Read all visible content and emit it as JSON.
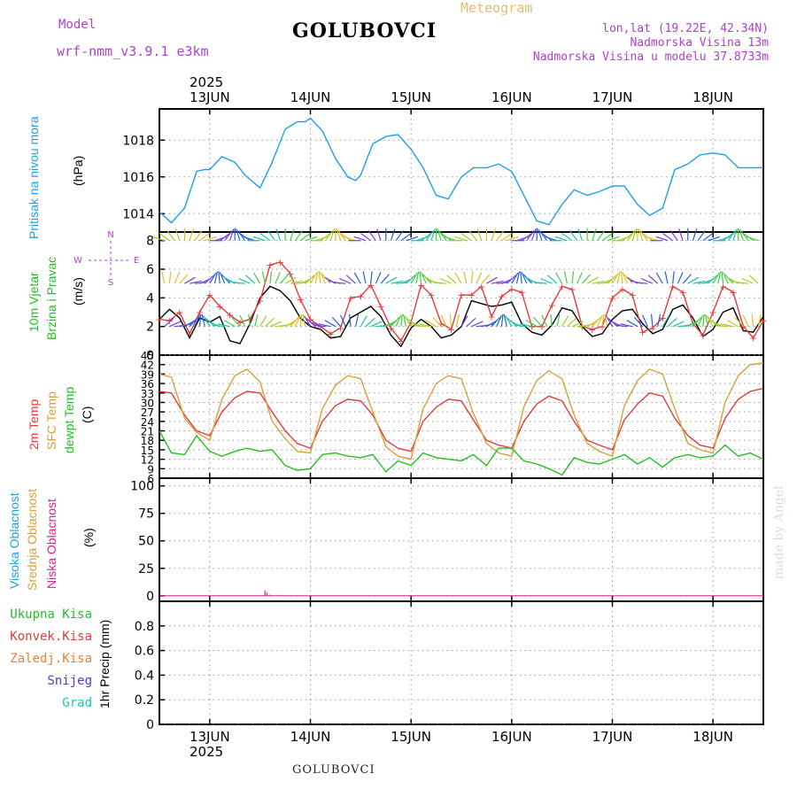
{
  "header": {
    "model_label": "Model",
    "model_name": "wrf-nmm_v3.9.1 e3km",
    "station": "GOLUBOVCI",
    "meteogram": "Meteogram",
    "lonlat": "lon,lat (19.22E, 42.34N)",
    "elevation": "Nadmorska Visina 13m",
    "model_elevation": "Nadmorska Visina u modelu 37.8733m",
    "footer_station": "GOLUBOVCI",
    "watermark": "made by Angel"
  },
  "colors": {
    "pressure": "#1ea0e6",
    "wind_speed": "#000000",
    "gust": "#e23c3c",
    "t2m": "#e23c3c",
    "sfc": "#d9a03c",
    "dewpt": "#22c022",
    "high_cloud": "#1ea0e6",
    "mid_cloud": "#d9a03c",
    "low_cloud": "#e0208a",
    "ukupna": "#22c022",
    "konvek": "#e23c3c",
    "zaledj": "#f08030",
    "snijeg": "#4040e0",
    "grad": "#20c0b0"
  },
  "chart_data": {
    "type": "line",
    "x_axis": {
      "year": "2025",
      "tick_labels": [
        "13JUN",
        "14JUN",
        "15JUN",
        "16JUN",
        "17JUN",
        "18JUN"
      ],
      "start_day": 12.5,
      "end_day": 18.5,
      "major_ticks": [
        13,
        14,
        15,
        16,
        17,
        18
      ]
    },
    "panels": [
      {
        "id": "pressure",
        "ylabel": "(hPa)",
        "side_labels": [
          "Pritisak na nivou mora"
        ],
        "ylim": [
          1013,
          1019.7
        ],
        "yticks": [
          1014,
          1016,
          1018
        ],
        "series": [
          {
            "name": "Pritisak na nivou mora",
            "color": "pressure",
            "x": [
              12.5,
              12.62,
              12.75,
              12.87,
              12.95,
              13.0,
              13.12,
              13.25,
              13.35,
              13.5,
              13.62,
              13.75,
              13.87,
              13.95,
              14.0,
              14.12,
              14.25,
              14.37,
              14.45,
              14.5,
              14.62,
              14.75,
              14.87,
              15.0,
              15.12,
              15.25,
              15.37,
              15.5,
              15.62,
              15.75,
              15.87,
              16.0,
              16.12,
              16.25,
              16.37,
              16.5,
              16.62,
              16.75,
              16.87,
              17.0,
              17.12,
              17.25,
              17.37,
              17.5,
              17.62,
              17.75,
              17.87,
              18.0,
              18.12,
              18.25,
              18.37,
              18.5
            ],
            "y": [
              1014.1,
              1013.5,
              1014.3,
              1016.3,
              1016.4,
              1016.4,
              1017.1,
              1016.8,
              1016.1,
              1015.4,
              1016.8,
              1018.6,
              1019.0,
              1019.0,
              1019.2,
              1018.5,
              1017.0,
              1016.0,
              1015.8,
              1016.1,
              1017.8,
              1018.2,
              1018.3,
              1017.5,
              1016.5,
              1015.0,
              1014.8,
              1016.0,
              1016.5,
              1016.5,
              1016.7,
              1016.3,
              1015.0,
              1013.6,
              1013.4,
              1014.5,
              1015.3,
              1015.0,
              1015.2,
              1015.5,
              1015.5,
              1014.5,
              1013.9,
              1014.3,
              1016.4,
              1016.7,
              1017.2,
              1017.3,
              1017.2,
              1016.5,
              1016.5,
              1016.5
            ]
          }
        ]
      },
      {
        "id": "wind",
        "ylabel": "(m/s)",
        "side_labels": [
          "10m Vjetar",
          "Brzina i Pravac"
        ],
        "compass": [
          "N",
          "E",
          "S",
          "W"
        ],
        "ylim": [
          0,
          8.6
        ],
        "yticks": [
          0,
          2,
          4,
          6,
          8
        ],
        "series": [
          {
            "name": "Brzina vjetra",
            "color": "wind_speed",
            "x": [
              12.5,
              12.6,
              12.7,
              12.8,
              12.9,
              13.0,
              13.1,
              13.2,
              13.3,
              13.4,
              13.5,
              13.6,
              13.7,
              13.8,
              13.9,
              14.0,
              14.1,
              14.2,
              14.3,
              14.4,
              14.5,
              14.6,
              14.7,
              14.8,
              14.9,
              15.0,
              15.1,
              15.2,
              15.3,
              15.4,
              15.5,
              15.6,
              15.7,
              15.8,
              15.9,
              16.0,
              16.1,
              16.2,
              16.3,
              16.4,
              16.5,
              16.6,
              16.7,
              16.8,
              16.9,
              17.0,
              17.1,
              17.2,
              17.3,
              17.4,
              17.5,
              17.6,
              17.7,
              17.8,
              17.9,
              18.0,
              18.1,
              18.2,
              18.3,
              18.4,
              18.5
            ],
            "y": [
              2.5,
              3.2,
              2.6,
              1.2,
              2.6,
              2.3,
              2.7,
              1.0,
              0.8,
              2.2,
              4.0,
              4.8,
              4.5,
              3.8,
              2.6,
              2.0,
              1.8,
              1.2,
              1.3,
              2.6,
              3.0,
              3.4,
              2.7,
              1.4,
              0.6,
              1.9,
              2.5,
              2.0,
              1.2,
              1.4,
              2.0,
              3.8,
              3.6,
              3.4,
              3.5,
              3.7,
              2.2,
              1.6,
              1.4,
              2.1,
              3.3,
              3.1,
              2.0,
              1.3,
              1.5,
              2.5,
              3.1,
              3.2,
              2.2,
              1.5,
              1.8,
              3.2,
              3.5,
              2.6,
              1.3,
              1.8,
              3.0,
              3.3,
              1.7,
              1.6,
              2.7
            ]
          },
          {
            "name": "Udari vjetra",
            "color": "gust",
            "x": [
              12.5,
              12.6,
              12.7,
              12.8,
              12.9,
              13.0,
              13.1,
              13.2,
              13.3,
              13.4,
              13.5,
              13.6,
              13.7,
              13.8,
              13.9,
              14.0,
              14.1,
              14.2,
              14.3,
              14.4,
              14.5,
              14.6,
              14.7,
              14.8,
              14.9,
              15.0,
              15.1,
              15.2,
              15.3,
              15.4,
              15.5,
              15.6,
              15.7,
              15.8,
              15.9,
              16.0,
              16.1,
              16.2,
              16.3,
              16.4,
              16.5,
              16.6,
              16.7,
              16.8,
              16.9,
              17.0,
              17.1,
              17.2,
              17.3,
              17.4,
              17.5,
              17.6,
              17.7,
              17.8,
              17.9,
              18.0,
              18.1,
              18.2,
              18.3,
              18.4,
              18.5
            ],
            "y": [
              2.5,
              2.4,
              3.0,
              1.5,
              3.0,
              4.2,
              3.4,
              2.8,
              2.3,
              2.5,
              3.8,
              6.3,
              6.5,
              5.7,
              3.9,
              2.5,
              2.0,
              1.5,
              1.9,
              4.0,
              4.1,
              4.9,
              3.4,
              1.9,
              1.0,
              2.3,
              4.9,
              4.2,
              2.2,
              1.8,
              4.2,
              4.2,
              4.8,
              2.7,
              4.1,
              4.6,
              4.4,
              2.0,
              2.0,
              3.5,
              4.8,
              4.6,
              2.0,
              1.8,
              2.0,
              4.0,
              4.6,
              4.2,
              1.6,
              1.9,
              2.6,
              4.8,
              4.4,
              2.2,
              1.4,
              3.0,
              4.8,
              4.4,
              2.0,
              1.2,
              2.4
            ]
          }
        ]
      },
      {
        "id": "temperature",
        "ylabel": "(C)",
        "side_labels": [
          "2m Temp",
          "SFC Temp",
          "dewpt Temp"
        ],
        "ylim": [
          6,
          45
        ],
        "yticks": [
          6,
          9,
          12,
          15,
          18,
          21,
          24,
          27,
          30,
          33,
          36,
          39,
          42,
          45
        ],
        "series": [
          {
            "name": "2m Temp",
            "color": "t2m",
            "x": [
              12.5,
              12.62,
              12.75,
              12.87,
              13.0,
              13.12,
              13.25,
              13.37,
              13.5,
              13.62,
              13.75,
              13.87,
              14.0,
              14.12,
              14.25,
              14.37,
              14.5,
              14.62,
              14.75,
              14.87,
              15.0,
              15.12,
              15.25,
              15.37,
              15.5,
              15.62,
              15.75,
              15.87,
              16.0,
              16.12,
              16.25,
              16.37,
              16.5,
              16.62,
              16.75,
              16.87,
              17.0,
              17.12,
              17.25,
              17.37,
              17.5,
              17.62,
              17.75,
              17.87,
              18.0,
              18.12,
              18.25,
              18.37,
              18.5
            ],
            "y": [
              33.5,
              33.0,
              26.0,
              21.0,
              19.5,
              27.0,
              31.5,
              33.5,
              33.0,
              27.0,
              21.0,
              17.0,
              15.5,
              24.0,
              29.0,
              31.0,
              30.5,
              26.0,
              18.0,
              15.5,
              14.5,
              24.0,
              28.5,
              31.0,
              30.5,
              24.5,
              18.0,
              16.5,
              15.5,
              24.0,
              29.5,
              32.0,
              30.5,
              24.0,
              18.0,
              16.5,
              15.0,
              24.5,
              29.5,
              33.0,
              32.0,
              25.0,
              19.5,
              16.5,
              15.5,
              25.0,
              31.0,
              33.5,
              34.5
            ]
          },
          {
            "name": "SFC Temp",
            "color": "sfc",
            "x": [
              12.5,
              12.62,
              12.75,
              12.87,
              13.0,
              13.12,
              13.25,
              13.37,
              13.5,
              13.62,
              13.75,
              13.87,
              14.0,
              14.12,
              14.25,
              14.37,
              14.5,
              14.62,
              14.75,
              14.87,
              15.0,
              15.12,
              15.25,
              15.37,
              15.5,
              15.62,
              15.75,
              15.87,
              16.0,
              16.12,
              16.25,
              16.37,
              16.5,
              16.62,
              16.75,
              16.87,
              17.0,
              17.12,
              17.25,
              17.37,
              17.5,
              17.62,
              17.75,
              17.87,
              18.0,
              18.12,
              18.25,
              18.37,
              18.5
            ],
            "y": [
              39.0,
              38.0,
              25.0,
              20.5,
              18.0,
              31.0,
              38.5,
              40.5,
              36.5,
              24.0,
              18.5,
              14.5,
              14.0,
              28.0,
              35.5,
              38.5,
              37.5,
              27.0,
              16.0,
              13.0,
              12.0,
              28.0,
              36.0,
              38.5,
              37.5,
              26.5,
              17.0,
              14.0,
              13.0,
              28.5,
              37.0,
              40.0,
              37.5,
              26.0,
              17.0,
              14.5,
              13.0,
              29.0,
              37.0,
              40.5,
              39.0,
              28.0,
              17.0,
              15.0,
              14.0,
              30.0,
              38.5,
              42.0,
              42.5
            ]
          },
          {
            "name": "dewpt Temp",
            "color": "dewpt",
            "x": [
              12.5,
              12.62,
              12.75,
              12.87,
              13.0,
              13.12,
              13.25,
              13.37,
              13.5,
              13.62,
              13.75,
              13.87,
              14.0,
              14.12,
              14.25,
              14.37,
              14.5,
              14.62,
              14.75,
              14.87,
              15.0,
              15.12,
              15.25,
              15.37,
              15.5,
              15.62,
              15.75,
              15.87,
              16.0,
              16.12,
              16.25,
              16.37,
              16.5,
              16.62,
              16.75,
              16.87,
              17.0,
              17.12,
              17.25,
              17.37,
              17.5,
              17.62,
              17.75,
              17.87,
              18.0,
              18.12,
              18.25,
              18.37,
              18.5
            ],
            "y": [
              21.0,
              14.0,
              13.5,
              19.5,
              14.5,
              13.0,
              14.5,
              15.5,
              14.5,
              15.0,
              10.0,
              8.5,
              9.0,
              13.5,
              14.0,
              13.0,
              12.5,
              13.5,
              8.0,
              11.5,
              10.0,
              14.0,
              12.5,
              12.0,
              11.5,
              13.5,
              10.0,
              15.5,
              15.5,
              11.5,
              10.5,
              9.0,
              7.0,
              12.5,
              11.0,
              10.5,
              12.0,
              13.5,
              10.5,
              12.5,
              9.5,
              12.5,
              13.5,
              12.5,
              13.0,
              16.5,
              13.0,
              14.0,
              12.0
            ]
          }
        ]
      },
      {
        "id": "clouds",
        "ylabel": "(%)",
        "side_labels": [
          "Visoka Oblacnost",
          "Srednja Oblacnost",
          "Niska Oblacnost"
        ],
        "ylim": [
          -5,
          107
        ],
        "yticks": [
          0,
          25,
          50,
          75,
          100
        ],
        "series": [
          {
            "name": "Niska Oblacnost",
            "color": "low_cloud",
            "x": [
              13.55,
              13.57
            ],
            "y": [
              5,
              3
            ]
          },
          {
            "name": "Visoka Oblacnost",
            "color": "high_cloud",
            "x": [
              13.6
            ],
            "y": [
              1
            ]
          }
        ]
      },
      {
        "id": "precip",
        "ylabel": "1hr Precip (mm)",
        "legend": [
          "Ukupna Kisa",
          "Konvek.Kisa",
          "Zaledj.Kisa",
          "Snijeg",
          "Grad"
        ],
        "ylim": [
          0,
          1.0
        ],
        "yticks": [
          0,
          0.2,
          0.4,
          0.6,
          0.8
        ],
        "tick_labels": [
          "0",
          "0.2",
          "0.4",
          "0.6",
          "0.8"
        ],
        "series": []
      }
    ]
  }
}
